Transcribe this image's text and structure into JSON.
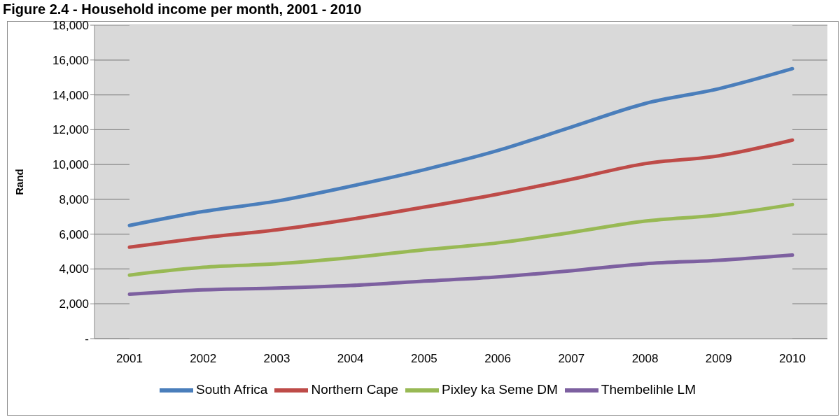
{
  "chart_data": {
    "type": "line",
    "title": "Figure 2.4 - Household income per month, 2001 - 2010",
    "ylabel": "Rand",
    "categories": [
      "2001",
      "2002",
      "2003",
      "2004",
      "2005",
      "2006",
      "2007",
      "2008",
      "2009",
      "2010"
    ],
    "series": [
      {
        "name": "South Africa",
        "color": "#4a7ebb",
        "values": [
          6500,
          7300,
          7900,
          8750,
          9700,
          10800,
          12150,
          13500,
          14350,
          15500
        ]
      },
      {
        "name": "Northern Cape",
        "color": "#be4b48",
        "values": [
          5250,
          5800,
          6250,
          6850,
          7550,
          8300,
          9150,
          10050,
          10500,
          11400
        ]
      },
      {
        "name": "Pixley ka Seme DM",
        "color": "#98b954",
        "values": [
          3650,
          4100,
          4300,
          4650,
          5100,
          5500,
          6100,
          6750,
          7100,
          7700
        ]
      },
      {
        "name": "Thembelihle LM",
        "color": "#7d60a0",
        "values": [
          2550,
          2800,
          2900,
          3050,
          3300,
          3550,
          3900,
          4300,
          4500,
          4800
        ]
      }
    ],
    "ylim": [
      0,
      18000
    ],
    "yticks": [
      {
        "value": 0,
        "label": "-"
      },
      {
        "value": 2000,
        "label": "2,000"
      },
      {
        "value": 4000,
        "label": "4,000"
      },
      {
        "value": 6000,
        "label": "6,000"
      },
      {
        "value": 8000,
        "label": "8,000"
      },
      {
        "value": 10000,
        "label": "10,000"
      },
      {
        "value": 12000,
        "label": "12,000"
      },
      {
        "value": 14000,
        "label": "14,000"
      },
      {
        "value": 16000,
        "label": "16,000"
      },
      {
        "value": 18000,
        "label": "18,000"
      }
    ],
    "grid": "y",
    "legend": "bottom",
    "marker": "none",
    "line_style": "solid"
  }
}
